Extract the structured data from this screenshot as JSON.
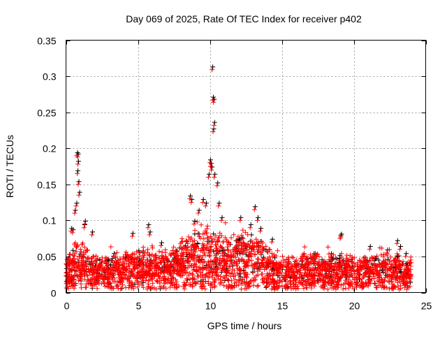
{
  "chart_data": {
    "type": "scatter",
    "title": "Day 069 of 2025, Rate Of TEC Index for receiver p402",
    "xlabel": "GPS time / hours",
    "ylabel": "ROTI / TECUs",
    "xlim": [
      0,
      25
    ],
    "ylim": [
      0,
      0.35
    ],
    "xticks": [
      0,
      5,
      10,
      15,
      20,
      25
    ],
    "xtick_labels": [
      "0",
      "5",
      "10",
      "15",
      "20",
      "25"
    ],
    "yticks": [
      0,
      0.05,
      0.1,
      0.15,
      0.2,
      0.25,
      0.3,
      0.35
    ],
    "ytick_labels": [
      "0",
      "0.05",
      "0.1",
      "0.15",
      "0.2",
      "0.25",
      "0.3",
      "0.35"
    ],
    "grid": true,
    "marker": "+",
    "series_colors": {
      "black": "#000000",
      "red": "#ff0000"
    },
    "dense_envelope": {
      "hours": [
        0,
        0.5,
        1,
        1.5,
        2,
        3,
        4,
        5,
        6,
        7,
        8,
        8.5,
        9,
        9.5,
        10,
        10.5,
        11,
        12,
        13,
        13.5,
        14,
        15,
        16,
        17,
        18,
        19,
        20,
        21,
        22,
        23,
        24
      ],
      "upper_roti": [
        0.03,
        0.05,
        0.05,
        0.04,
        0.035,
        0.035,
        0.04,
        0.045,
        0.045,
        0.04,
        0.05,
        0.06,
        0.065,
        0.065,
        0.07,
        0.065,
        0.055,
        0.06,
        0.065,
        0.06,
        0.045,
        0.035,
        0.035,
        0.04,
        0.035,
        0.04,
        0.035,
        0.035,
        0.04,
        0.04,
        0.03
      ]
    },
    "notable_points": [
      [
        0.35,
        0.085
      ],
      [
        0.45,
        0.083
      ],
      [
        0.6,
        0.11
      ],
      [
        0.7,
        0.12
      ],
      [
        0.75,
        0.19
      ],
      [
        0.8,
        0.188
      ],
      [
        0.78,
        0.165
      ],
      [
        0.82,
        0.178
      ],
      [
        0.85,
        0.15
      ],
      [
        0.9,
        0.135
      ],
      [
        1.3,
        0.095
      ],
      [
        1.25,
        0.09
      ],
      [
        1.8,
        0.08
      ],
      [
        3.3,
        0.05
      ],
      [
        4.6,
        0.078
      ],
      [
        5.7,
        0.09
      ],
      [
        5.8,
        0.08
      ],
      [
        6.6,
        0.065
      ],
      [
        8.6,
        0.13
      ],
      [
        8.7,
        0.125
      ],
      [
        8.9,
        0.095
      ],
      [
        9.2,
        0.11
      ],
      [
        9.5,
        0.125
      ],
      [
        9.7,
        0.12
      ],
      [
        9.9,
        0.16
      ],
      [
        10.0,
        0.18
      ],
      [
        10.05,
        0.175
      ],
      [
        10.1,
        0.17
      ],
      [
        10.15,
        0.309
      ],
      [
        10.2,
        0.267
      ],
      [
        10.25,
        0.264
      ],
      [
        10.28,
        0.232
      ],
      [
        10.22,
        0.223
      ],
      [
        10.3,
        0.16
      ],
      [
        10.5,
        0.148
      ],
      [
        10.6,
        0.12
      ],
      [
        10.8,
        0.1
      ],
      [
        12.1,
        0.1
      ],
      [
        12.8,
        0.09
      ],
      [
        13.1,
        0.115
      ],
      [
        13.3,
        0.1
      ],
      [
        13.5,
        0.085
      ],
      [
        14.3,
        0.07
      ],
      [
        16.5,
        0.05
      ],
      [
        17.2,
        0.05
      ],
      [
        18.4,
        0.05
      ],
      [
        19.1,
        0.077
      ],
      [
        19.05,
        0.075
      ],
      [
        21.1,
        0.06
      ],
      [
        22.3,
        0.055
      ],
      [
        23.0,
        0.068
      ],
      [
        23.2,
        0.06
      ],
      [
        23.6,
        0.05
      ]
    ]
  }
}
